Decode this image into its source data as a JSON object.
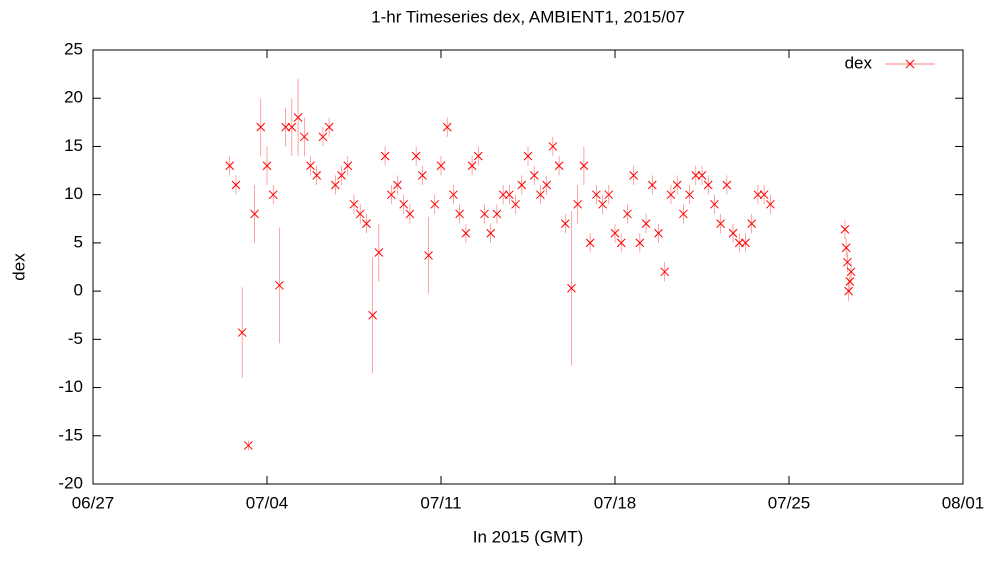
{
  "chart_data": {
    "type": "scatter",
    "title": "1-hr Timeseries dex, AMBIENT1, 2015/07",
    "x_label": "In 2015 (GMT)",
    "y_label": "dex",
    "xlim": [
      0,
      35
    ],
    "xticks": [
      {
        "value": 0,
        "label": "06/27"
      },
      {
        "value": 7,
        "label": "07/04"
      },
      {
        "value": 14,
        "label": "07/11"
      },
      {
        "value": 21,
        "label": "07/18"
      },
      {
        "value": 28,
        "label": "07/25"
      },
      {
        "value": 35,
        "label": "08/01"
      }
    ],
    "ylim": [
      -20,
      25
    ],
    "yticks": [
      -20,
      -15,
      -10,
      -5,
      0,
      5,
      10,
      15,
      20,
      25
    ],
    "legend": "upper right",
    "series": [
      {
        "name": "dex",
        "color": "#ff0000",
        "x": [
          5.5,
          5.75,
          6.0,
          6.25,
          6.5,
          6.75,
          7.0,
          7.25,
          7.5,
          7.75,
          8.0,
          8.25,
          8.5,
          8.75,
          9.0,
          9.25,
          9.5,
          9.75,
          10.0,
          10.25,
          10.5,
          10.75,
          11.0,
          11.25,
          11.5,
          11.75,
          12.0,
          12.25,
          12.5,
          12.75,
          13.0,
          13.25,
          13.5,
          13.75,
          14.0,
          14.25,
          14.5,
          14.75,
          15.0,
          15.25,
          15.5,
          15.75,
          16.0,
          16.25,
          16.5,
          16.75,
          17.0,
          17.25,
          17.5,
          17.75,
          18.0,
          18.25,
          18.5,
          18.75,
          19.0,
          19.25,
          19.5,
          19.75,
          20.0,
          20.25,
          20.5,
          20.75,
          21.0,
          21.25,
          21.5,
          21.75,
          22.0,
          22.25,
          22.5,
          22.75,
          23.0,
          23.25,
          23.5,
          23.75,
          24.0,
          24.25,
          24.5,
          24.75,
          25.0,
          25.25,
          25.5,
          25.75,
          26.0,
          26.25,
          26.5,
          26.75,
          27.0,
          27.25,
          30.25,
          30.3,
          30.35,
          30.4,
          30.45,
          30.5
        ],
        "values": [
          13,
          11,
          -4.3,
          -16,
          8,
          17,
          13,
          10,
          0.6,
          17,
          17,
          18,
          16,
          13,
          12,
          16,
          17,
          11,
          12,
          13,
          9,
          8,
          7,
          -2.5,
          4,
          14,
          10,
          11,
          9,
          8,
          14,
          12,
          3.7,
          9,
          13,
          17,
          10,
          8,
          6,
          13,
          14,
          8,
          6,
          8,
          10,
          10,
          9,
          11,
          14,
          12,
          10,
          11,
          15,
          13,
          7,
          0.3,
          9,
          13,
          5,
          10,
          9,
          10,
          6,
          5,
          8,
          12,
          5,
          7,
          11,
          6,
          2,
          10,
          11,
          8,
          10,
          12,
          12,
          11,
          9,
          7,
          11,
          6,
          5,
          5,
          7,
          10,
          10,
          9,
          6.4,
          4.5,
          3,
          0,
          1,
          2
        ],
        "errors": [
          1,
          1,
          4.7,
          0.5,
          3,
          3,
          2,
          1,
          6,
          2,
          3,
          4,
          2,
          1,
          1,
          1,
          1,
          1,
          1,
          1,
          1,
          1,
          1,
          6,
          3,
          1,
          1,
          1,
          1,
          1,
          1,
          1,
          4,
          1,
          1,
          1,
          1,
          1,
          1,
          1,
          1,
          1,
          1,
          1,
          1,
          1,
          1,
          1,
          1,
          1,
          1,
          1,
          1,
          1,
          1,
          8,
          2,
          2,
          1,
          1,
          1,
          1,
          1,
          1,
          1,
          1,
          1,
          1,
          1,
          1,
          1,
          1,
          1,
          1,
          1,
          1,
          1,
          1,
          1,
          1,
          1,
          1,
          1,
          1,
          1,
          1,
          1,
          1,
          1,
          1,
          1,
          1,
          1,
          1
        ]
      }
    ]
  }
}
